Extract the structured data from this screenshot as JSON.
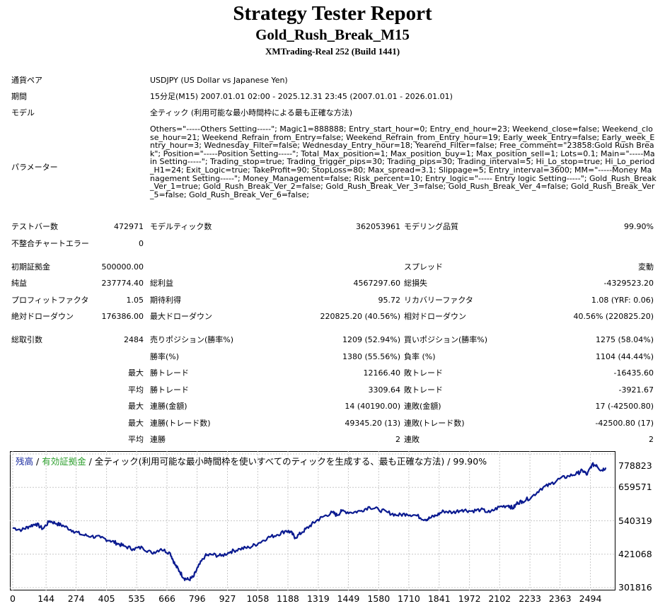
{
  "header": {
    "title": "Strategy Tester Report",
    "subtitle": "Gold_Rush_Break_M15",
    "server": "XMTrading-Real 252 (Build 1441)"
  },
  "info": {
    "symbol_label": "通貨ペア",
    "symbol_value": "USDJPY (US Dollar vs Japanese Yen)",
    "period_label": "期間",
    "period_value": "15分足(M15) 2007.01.01 02:00 - 2025.12.31 23:45 (2007.01.01 - 2026.01.01)",
    "model_label": "モデル",
    "model_value": "全ティック (利用可能な最小時間枠による最も正確な方法)",
    "params_label": "パラメーター",
    "params_value": "Others=\"-----Others Setting-----\"; Magic1=888888; Entry_start_hour=0; Entry_end_hour=23; Weekend_close=false; Weekend_close_hour=21; Weekend_Refrain_from_Entry=false; Weekend_Refrain_from_Entry_hour=19; Early_week_Entry=false; Early_week_Entry_hour=3; Wednesday_Filter=false; Wednesday_Entry_hour=18; Yearend_Filter=false; Free_comment=\"23858:Gold Rush Break\"; Position=\"-----Position Setting-----\"; Total_Max_position=1; Max_position_buy=1; Max_position_sell=1; Lots=0.1; Main=\"-----Main Setting-----\"; Trading_stop=true; Trading_trigger_pips=30; Trading_pips=30; Trading_interval=5; Hi_Lo_stop=true; Hi_Lo_period_H1=24; Exit_Logic=true; TakeProfit=90; StopLoss=80; Max_spread=3.1; Slippage=5; Entry_interval=3600; MM=\"-----Money Management Setting-----\"; Money_Management=false; Risk_percent=10; Entry_logic=\"----- Entry logic Setting-----\"; Gold_Rush_Break_Ver_1=true; Gold_Rush_Break_Ver_2=false; Gold_Rush_Break_Ver_3=false; Gold_Rush_Break_Ver_4=false; Gold_Rush_Break_Ver_5=false; Gold_Rush_Break_Ver_6=false;"
  },
  "stats": {
    "bars_label": "テストバー数",
    "bars_value": "472971",
    "ticks_label": "モデルティック数",
    "ticks_value": "362053961",
    "quality_label": "モデリング品質",
    "quality_value": "99.90%",
    "mismatch_label": "不整合チャートエラー",
    "mismatch_value": "0",
    "deposit_label": "初期証拠金",
    "deposit_value": "500000.00",
    "spread_label": "スプレッド",
    "spread_value": "変動",
    "net_label": "純益",
    "net_value": "237774.40",
    "gross_profit_label": "総利益",
    "gross_profit_value": "4567297.60",
    "gross_loss_label": "総損失",
    "gross_loss_value": "-4329523.20",
    "pf_label": "プロフィットファクタ",
    "pf_value": "1.05",
    "expected_label": "期待利得",
    "expected_value": "95.72",
    "recovery_label": "リカバリーファクタ",
    "recovery_value": "1.08 (YRF: 0.06)",
    "abs_dd_label": "絶対ドローダウン",
    "abs_dd_value": "176386.00",
    "max_dd_label": "最大ドローダウン",
    "max_dd_value": "220825.20 (40.56%)",
    "rel_dd_label": "相対ドローダウン",
    "rel_dd_value": "40.56% (220825.20)",
    "trades_label": "総取引数",
    "trades_value": "2484",
    "short_label": "売りポジション(勝率%)",
    "short_value": "1209 (52.94%)",
    "long_label": "買いポジション(勝率%)",
    "long_value": "1275 (58.04%)",
    "win_rate_label": "勝率(%)",
    "win_rate_value": "1380 (55.56%)",
    "loss_rate_label": "負率 (%)",
    "loss_rate_value": "1104 (44.44%)",
    "max_label": "最大",
    "avg_label": "平均",
    "largest_win_label": "勝トレード",
    "largest_win_value": "12166.40",
    "largest_loss_label": "敗トレード",
    "largest_loss_value": "-16435.60",
    "avg_win_label": "勝トレード",
    "avg_win_value": "3309.64",
    "avg_loss_label": "敗トレード",
    "avg_loss_value": "-3921.67",
    "max_consec_win_amt_label": "連勝(金額)",
    "max_consec_win_amt_value": "14 (40190.00)",
    "max_consec_loss_amt_label": "連敗(金額)",
    "max_consec_loss_amt_value": "17 (-42500.80)",
    "max_consec_win_cnt_label": "連勝(トレード数)",
    "max_consec_win_cnt_value": "49345.20 (13)",
    "max_consec_loss_cnt_label": "連敗(トレード数)",
    "max_consec_loss_cnt_value": "-42500.80 (17)",
    "avg_consec_win_label": "連勝",
    "avg_consec_win_value": "2",
    "avg_consec_loss_label": "連敗",
    "avg_consec_loss_value": "2"
  },
  "chart_data": {
    "type": "line",
    "legend": {
      "balance": "残高",
      "sep1": " / ",
      "equity": "有効証拠金",
      "sep2": " / ",
      "model": "全ティック(利用可能な最小時間枠を使いすべてのティックを生成する、最も正確な方法) / 99.90%"
    },
    "colors": {
      "balance": "#1a2ba0",
      "equity": "#2ea02e",
      "grid": "#c8c8c8",
      "line": "#0a1a90"
    },
    "x_ticks": [
      "0",
      "144",
      "274",
      "405",
      "535",
      "666",
      "796",
      "927",
      "1058",
      "1188",
      "1319",
      "1449",
      "1580",
      "1710",
      "1841",
      "1972",
      "2102",
      "2233",
      "2363",
      "2494"
    ],
    "y_ticks": [
      "778823",
      "659571",
      "540319",
      "421068",
      "301816"
    ],
    "xlim": [
      0,
      2590
    ],
    "ylim": [
      301816,
      778823
    ],
    "series": [
      {
        "x": [
          0,
          40,
          70,
          100,
          130,
          160,
          190,
          220,
          260,
          300,
          340,
          380,
          420,
          450,
          480,
          520,
          560,
          600,
          640,
          680,
          700,
          720,
          740,
          760,
          780,
          800,
          830,
          860,
          900,
          940,
          980,
          1020,
          1060,
          1100,
          1140,
          1180,
          1200,
          1220,
          1250,
          1280,
          1310,
          1340,
          1380,
          1400,
          1420,
          1460,
          1500,
          1540,
          1580,
          1620,
          1660,
          1700,
          1740,
          1780,
          1800,
          1830,
          1860,
          1900,
          1940,
          1980,
          2020,
          2060,
          2100,
          2140,
          2160,
          2180,
          2200,
          2240,
          2280,
          2320,
          2360,
          2400,
          2440,
          2460,
          2480,
          2500,
          2520,
          2540,
          2560
        ],
        "values": [
          515000,
          508000,
          520000,
          530000,
          512000,
          540000,
          530000,
          522000,
          505000,
          490000,
          485000,
          480000,
          470000,
          460000,
          450000,
          440000,
          445000,
          425000,
          440000,
          425000,
          385000,
          360000,
          335000,
          330000,
          340000,
          375000,
          415000,
          420000,
          415000,
          430000,
          440000,
          445000,
          460000,
          480000,
          490000,
          505000,
          500000,
          480000,
          500000,
          520000,
          540000,
          555000,
          570000,
          560000,
          575000,
          570000,
          575000,
          590000,
          580000,
          570000,
          560000,
          565000,
          560000,
          545000,
          550000,
          560000,
          575000,
          570000,
          580000,
          575000,
          580000,
          570000,
          590000,
          595000,
          585000,
          605000,
          610000,
          625000,
          655000,
          670000,
          690000,
          700000,
          710000,
          720000,
          705000,
          740000,
          740000,
          720000,
          730000
        ]
      }
    ]
  }
}
